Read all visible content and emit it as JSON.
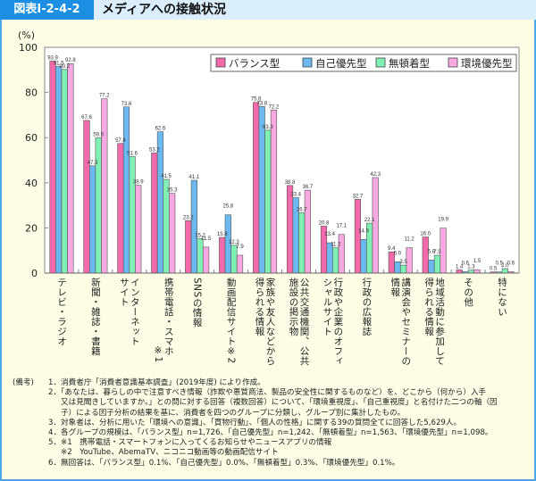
{
  "header": {
    "badge": "図表Ⅰ-2-4-2",
    "title": "メディアへの接触状況"
  },
  "chart_data": {
    "type": "bar",
    "ylabel": "(%)",
    "ylim": [
      0,
      100
    ],
    "yticks": [
      "0",
      "20",
      "40",
      "60",
      "80",
      "100"
    ],
    "grid": false,
    "legend_position": "top-right",
    "categories": [
      [
        "テレビ・ラジオ"
      ],
      [
        "新聞・雑誌・書籍"
      ],
      [
        "インターネット",
        "サイト"
      ],
      [
        "携帯電話・スマホ",
        "※1"
      ],
      [
        "SNSの情報"
      ],
      [
        "動画配信サイト※2"
      ],
      [
        "家族や友人などから",
        "得られる情報"
      ],
      [
        "公共交通機関、公共",
        "施設の掲示物"
      ],
      [
        "行政や企業のオフィ",
        "シャルサイト"
      ],
      [
        "行政の広報誌"
      ],
      [
        "講演会やセミナーの",
        "情報"
      ],
      [
        "地域活動に参加して",
        "得られる情報"
      ],
      [
        "その他"
      ],
      [
        "特にない"
      ]
    ],
    "series": [
      {
        "name": "バランス型",
        "color": "#f26aab",
        "values": [
          93.9,
          67.6,
          57.4,
          53.2,
          23.2,
          15.8,
          75.6,
          38.8,
          20.8,
          32.7,
          9.4,
          16.0,
          1.4,
          0.5
        ]
      },
      {
        "name": "自己優先型",
        "color": "#6cb9f2",
        "values": [
          91.5,
          47.5,
          73.6,
          62.6,
          41.1,
          25.8,
          73.8,
          33.4,
          13.4,
          14.9,
          5.0,
          5.8,
          0.6,
          0.5
        ]
      },
      {
        "name": "無頓着型",
        "color": "#80f0b4",
        "values": [
          90.2,
          59.9,
          51.6,
          41.5,
          15.2,
          12.3,
          63.3,
          26.7,
          11.2,
          22.1,
          3.5,
          7.9,
          1.3,
          2.0
        ]
      },
      {
        "name": "環境優先型",
        "color": "#f8a9e2",
        "values": [
          92.8,
          77.2,
          38.9,
          35.3,
          11.5,
          7.9,
          72.2,
          36.7,
          17.1,
          42.3,
          11.2,
          19.9,
          1.5,
          0.6
        ]
      }
    ]
  },
  "notes": {
    "label": "(備考)",
    "lines": [
      "1．消費者庁「消費者意識基本調査」(2019年度) により作成。",
      "2．「あなたは、暮らしの中で注意すべき情報（詐欺や悪質商法、製品の安全性に関するものなど）を、どこから（何から）入手",
      "又は見聞きしていますか。」との問に対する回答（複数回答）について、「環境重視度」、「自己重視度」と名付けた二つの軸（因",
      "子）による因子分析の結果を基に、消費者を四つのグループに分類し、グループ別に集計したもの。",
      "3．対象者は、分析に用いた「環境への意識」、「買物行動」、「個人の性格」に関する39の質問全てに回答した5,629人。",
      "4．各グループの規模は、「バランス型」n=1,726、「自己優先型」n=1,242、「無頓着型」n=1,563、「環境優先型」n=1,098。",
      "5．※1　携帯電話・スマートフォンに入ってくるお知らせやニュースアプリの情報",
      "※2　YouTube、AbemaTV、ニコニコ動画等の動画配信サイト",
      "6．無回答は、「バランス型」0.1%、「自己優先型」0.0%、「無頓着型」0.3%、「環境優先型」0.1%。"
    ]
  }
}
